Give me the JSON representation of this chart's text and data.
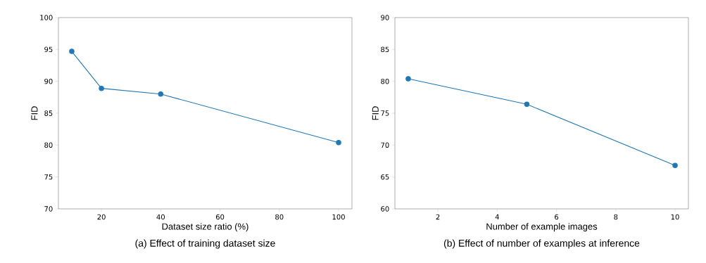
{
  "chart_data": [
    {
      "type": "line",
      "title": "(a) Effect of training dataset size",
      "xlabel": "Dataset size ratio (%)",
      "ylabel": "FID",
      "x": [
        10,
        20,
        40,
        100
      ],
      "values": [
        94.7,
        88.9,
        88.0,
        80.4
      ],
      "color": "#1f77b4",
      "marker": "circle",
      "line_style": "solid",
      "xlim": [
        5.5,
        104.5
      ],
      "xticks": [
        20,
        40,
        60,
        80,
        100
      ],
      "ylim": [
        70,
        100
      ],
      "yticks": [
        70,
        75,
        80,
        85,
        90,
        95,
        100
      ]
    },
    {
      "type": "line",
      "title": "(b) Effect of number of examples at inference",
      "xlabel": "Number of example images",
      "ylabel": "FID",
      "x": [
        1,
        5,
        10
      ],
      "values": [
        80.4,
        76.4,
        66.8
      ],
      "color": "#1f77b4",
      "marker": "circle",
      "line_style": "solid",
      "xlim": [
        0.55,
        10.45
      ],
      "xticks": [
        2,
        4,
        6,
        8,
        10
      ],
      "ylim": [
        60,
        90
      ],
      "yticks": [
        60,
        65,
        70,
        75,
        80,
        85,
        90
      ]
    }
  ]
}
